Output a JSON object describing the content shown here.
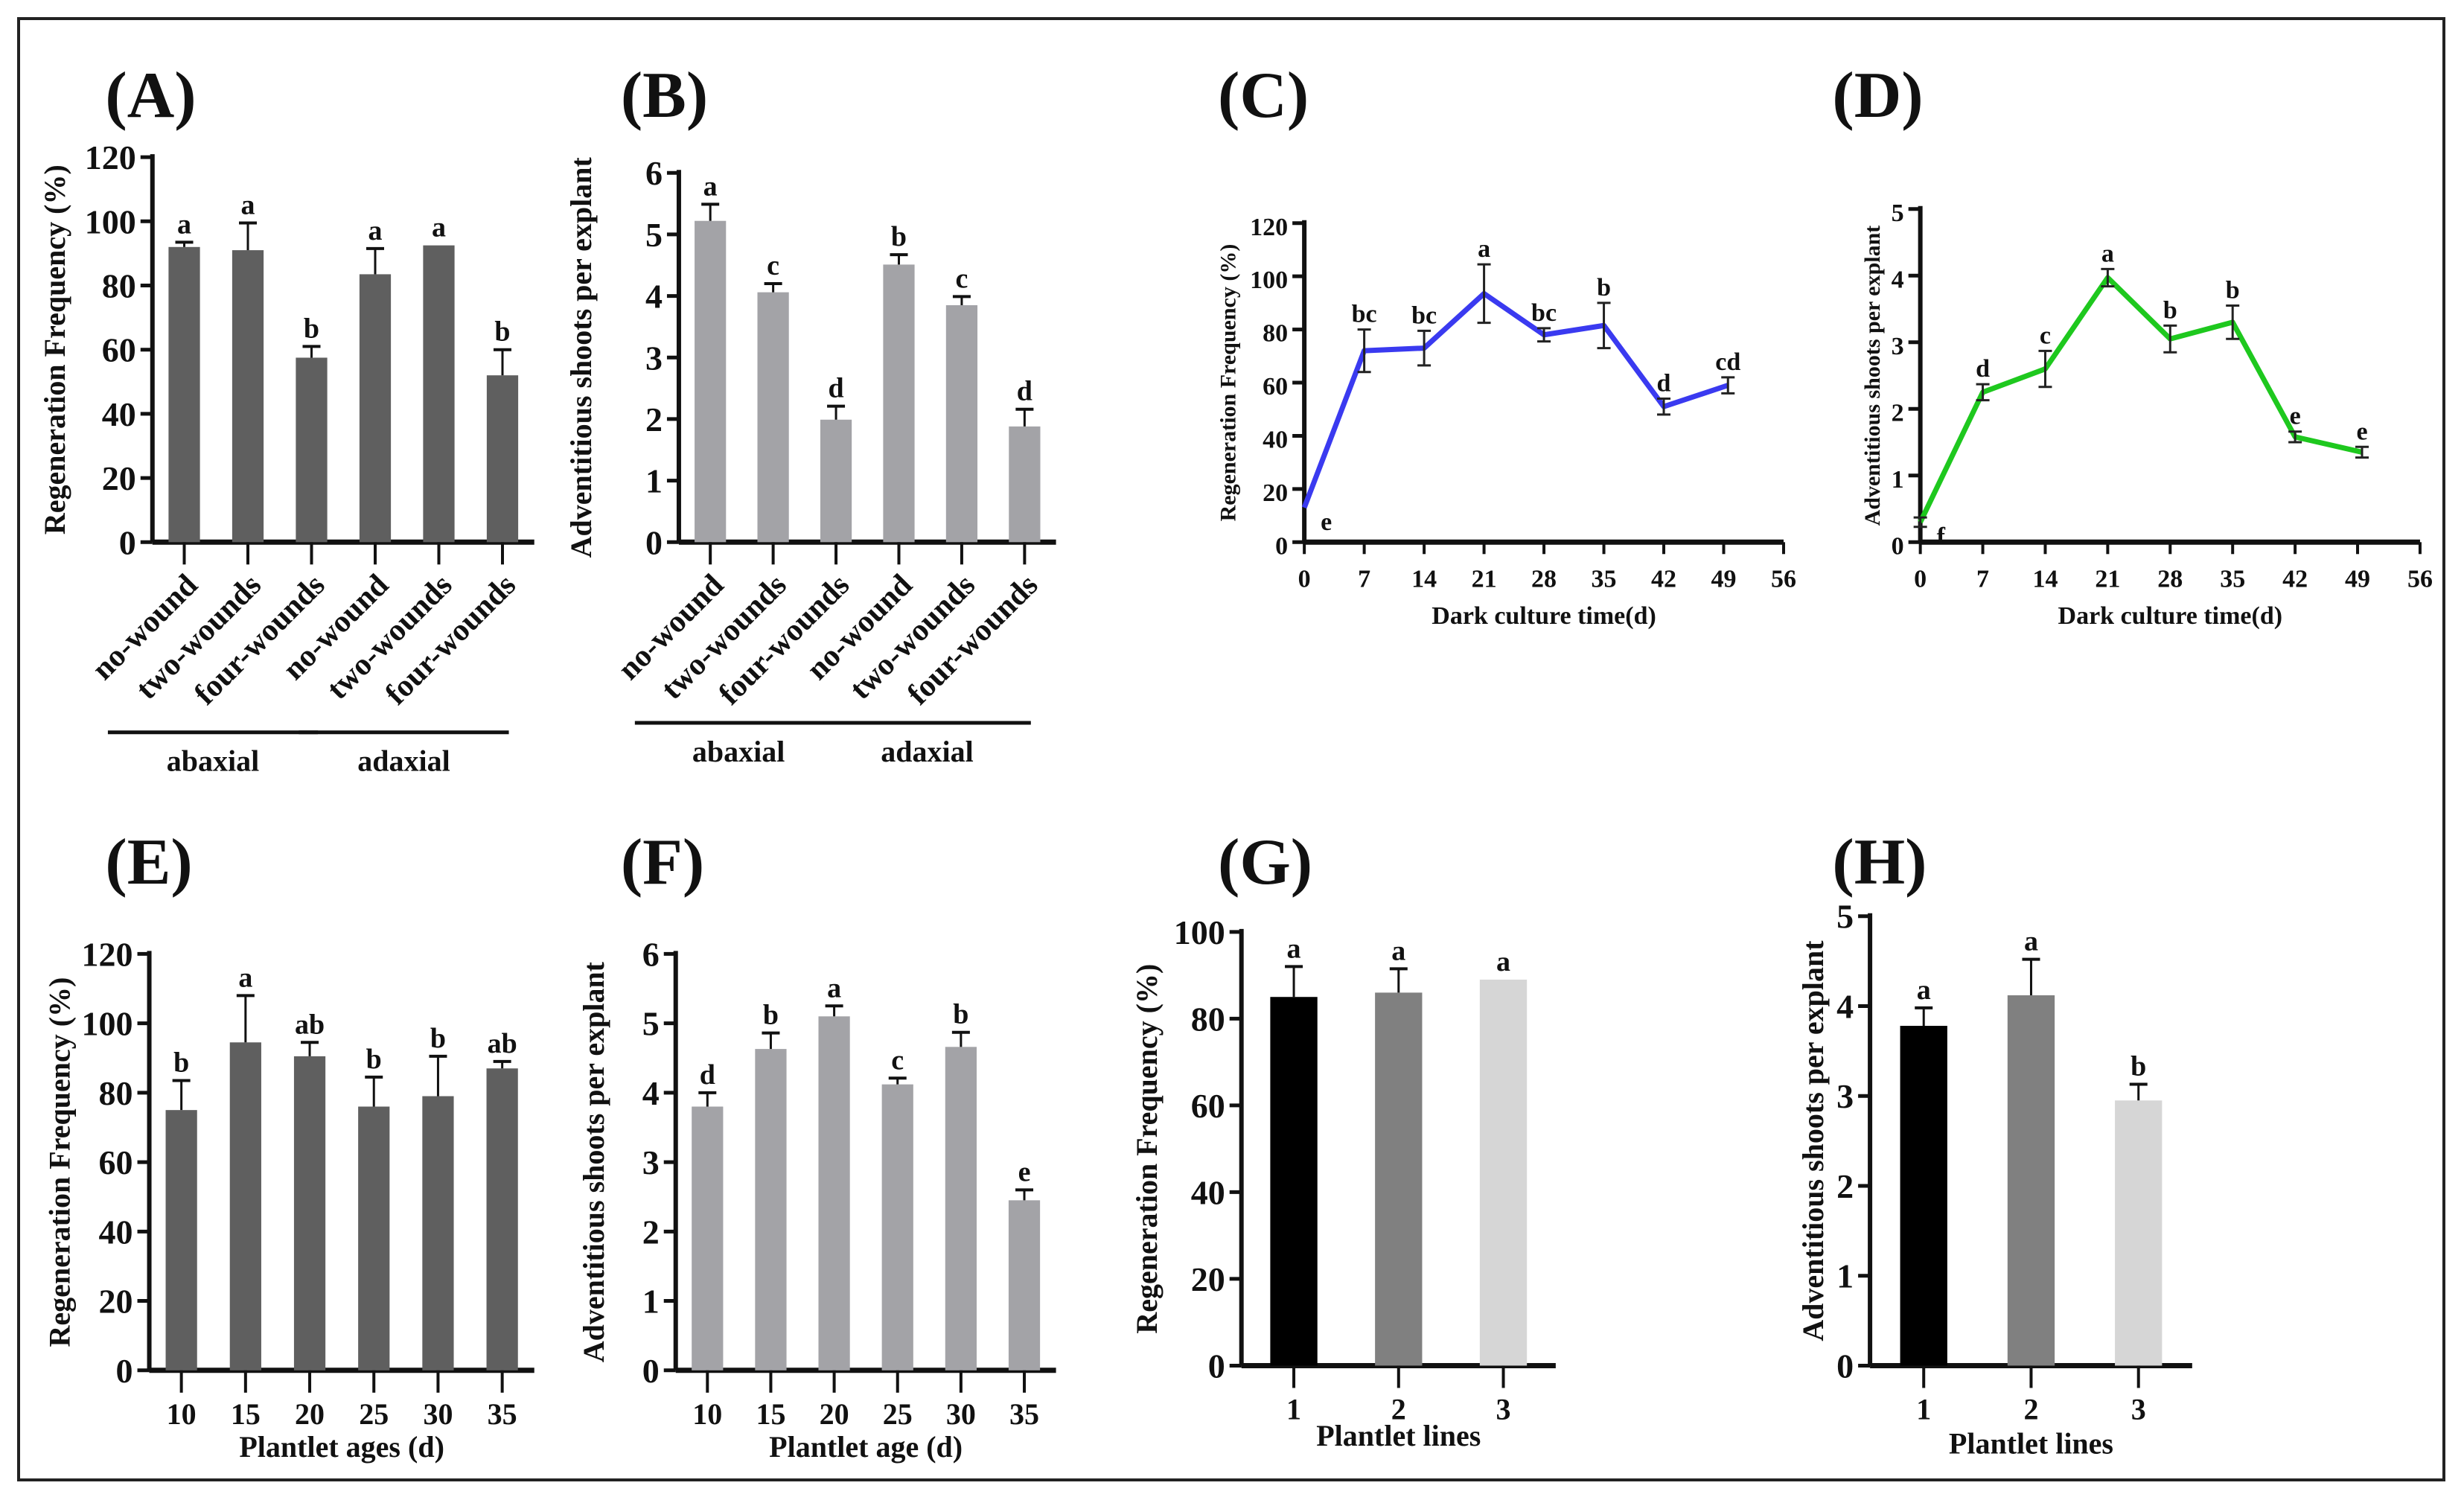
{
  "chart_data": [
    {
      "panel": "(A)",
      "type": "bar",
      "ylabel": "Regeneration Frequency (%)",
      "xlabel": "",
      "categories": [
        "no-wound",
        "two-wounds",
        "four-wounds",
        "no-wound",
        "two-wounds",
        "four-wounds"
      ],
      "values": [
        92,
        91,
        57.5,
        83.5,
        92.5,
        52
      ],
      "errors": [
        1.5,
        8.5,
        3.5,
        8,
        0,
        8
      ],
      "letters": [
        "a",
        "a",
        "b",
        "a",
        "a",
        "b"
      ],
      "groups": [
        {
          "label": "abaxial",
          "span": [
            0,
            2
          ]
        },
        {
          "label": "adaxial",
          "span": [
            3,
            5
          ]
        }
      ],
      "ylim": [
        0,
        120
      ],
      "yticks": [
        0,
        20,
        40,
        60,
        80,
        100,
        120
      ],
      "color": "#5f5f5f"
    },
    {
      "panel": "(B)",
      "type": "bar",
      "ylabel": "Adventitious shoots per explant",
      "xlabel": "",
      "categories": [
        "no-wound",
        "two-wounds",
        "four-wounds",
        "no-wound",
        "two-wounds",
        "four-wounds"
      ],
      "values": [
        5.22,
        4.06,
        1.99,
        4.51,
        3.85,
        1.88
      ],
      "errors": [
        0.27,
        0.14,
        0.22,
        0.16,
        0.14,
        0.28
      ],
      "letters": [
        "a",
        "c",
        "d",
        "b",
        "c",
        "d"
      ],
      "groups": [
        {
          "label": "abaxial",
          "span": [
            0,
            2
          ]
        },
        {
          "label": "adaxial",
          "span": [
            3,
            5
          ]
        }
      ],
      "ylim": [
        0,
        6
      ],
      "yticks": [
        0,
        1,
        2,
        3,
        4,
        5,
        6
      ],
      "color": "#a3a3a7"
    },
    {
      "panel": "(C)",
      "type": "line",
      "ylabel": "Regeneration Frequency (%)",
      "xlabel": "Dark culture time(d)",
      "x": [
        0,
        7,
        14,
        21,
        28,
        35,
        42,
        49.5
      ],
      "values": [
        13,
        72,
        73,
        93.5,
        78,
        81.5,
        51,
        59
      ],
      "errors": [
        0,
        8,
        6.5,
        11,
        2.5,
        8.5,
        3,
        3
      ],
      "letters": [
        "e",
        "bc",
        "bc",
        "a",
        "bc",
        "b",
        "d",
        "cd"
      ],
      "xlim": [
        0,
        56
      ],
      "xticks": [
        0,
        7,
        14,
        21,
        28,
        35,
        42,
        49,
        56
      ],
      "ylim": [
        0,
        120
      ],
      "yticks": [
        0,
        20,
        40,
        60,
        80,
        100,
        120
      ],
      "color": "#3a3af0"
    },
    {
      "panel": "(D)",
      "type": "line",
      "ylabel": "Adventitious shoots per explant",
      "xlabel": "Dark culture time(d)",
      "x": [
        0,
        7,
        14,
        21,
        28,
        35,
        42,
        49.5
      ],
      "values": [
        0.3,
        2.25,
        2.6,
        3.97,
        3.05,
        3.3,
        1.58,
        1.35
      ],
      "errors": [
        0.07,
        0.12,
        0.27,
        0.13,
        0.2,
        0.25,
        0.08,
        0.08
      ],
      "letters": [
        "f",
        "d",
        "c",
        "a",
        "b",
        "b",
        "e",
        "e"
      ],
      "xlim": [
        0,
        56
      ],
      "xticks": [
        0,
        7,
        14,
        21,
        28,
        35,
        42,
        49,
        56
      ],
      "ylim": [
        0,
        5
      ],
      "yticks": [
        0,
        1,
        2,
        3,
        4,
        5
      ],
      "color": "#1ec81e"
    },
    {
      "panel": "(E)",
      "type": "bar",
      "ylabel": "Regeneration Frequency (%)",
      "xlabel": "Plantlet ages (d)",
      "categories": [
        "10",
        "15",
        "20",
        "25",
        "30",
        "35"
      ],
      "values": [
        75,
        94.5,
        90.5,
        76,
        79,
        87
      ],
      "errors": [
        8.5,
        13.5,
        4,
        8.5,
        11.5,
        2
      ],
      "letters": [
        "b",
        "a",
        "ab",
        "b",
        "b",
        "ab"
      ],
      "ylim": [
        0,
        120
      ],
      "yticks": [
        0,
        20,
        40,
        60,
        80,
        100,
        120
      ],
      "color": "#5f5f5f"
    },
    {
      "panel": "(F)",
      "type": "bar",
      "ylabel": "Adventitious shoots per explant",
      "xlabel": "Plantlet age (d)",
      "categories": [
        "10",
        "15",
        "20",
        "25",
        "30",
        "35"
      ],
      "values": [
        3.8,
        4.63,
        5.1,
        4.12,
        4.66,
        2.45
      ],
      "errors": [
        0.2,
        0.23,
        0.15,
        0.09,
        0.21,
        0.15
      ],
      "letters": [
        "d",
        "b",
        "a",
        "c",
        "b",
        "e"
      ],
      "ylim": [
        0,
        6
      ],
      "yticks": [
        0,
        1,
        2,
        3,
        4,
        5,
        6
      ],
      "color": "#a3a3a7"
    },
    {
      "panel": "(G)",
      "type": "bar",
      "ylabel": "Regeneration Frequency (%)",
      "xlabel": "Plantlet lines",
      "categories": [
        "1",
        "2",
        "3"
      ],
      "values": [
        85,
        86,
        89
      ],
      "errors": [
        7,
        5.5,
        0
      ],
      "letters": [
        "a",
        "a",
        "a"
      ],
      "ylim": [
        0,
        100
      ],
      "yticks": [
        0,
        20,
        40,
        60,
        80,
        100
      ],
      "colors": [
        "#000000",
        "#808080",
        "#d6d6d6"
      ]
    },
    {
      "panel": "(H)",
      "type": "bar",
      "ylabel": "Adventitious shoots per explant",
      "xlabel": "Plantlet lines",
      "categories": [
        "1",
        "2",
        "3"
      ],
      "values": [
        3.78,
        4.12,
        2.95
      ],
      "errors": [
        0.2,
        0.4,
        0.18
      ],
      "letters": [
        "a",
        "a",
        "b"
      ],
      "ylim": [
        0,
        5
      ],
      "yticks": [
        0,
        1,
        2,
        3,
        4,
        5
      ],
      "colors": [
        "#000000",
        "#808080",
        "#d6d6d6"
      ]
    }
  ]
}
